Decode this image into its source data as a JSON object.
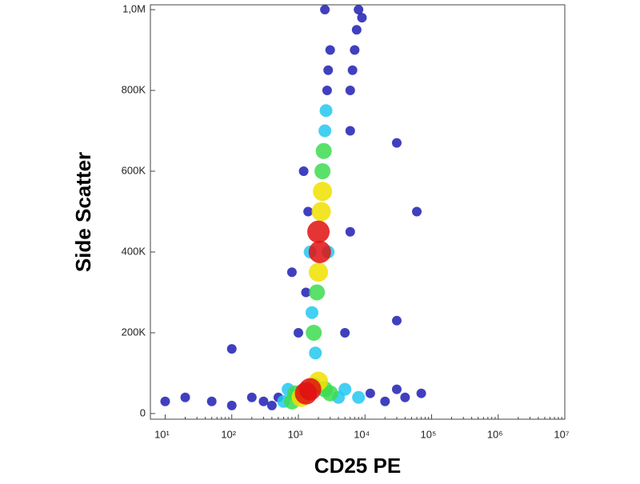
{
  "chart_data": {
    "type": "density",
    "x_label": "CD25 PE",
    "y_label": "Side Scatter",
    "x_log": true,
    "xlim": [
      6,
      10000000
    ],
    "xticks": [
      {
        "value": 10,
        "label": "10¹"
      },
      {
        "value": 100,
        "label": "10²"
      },
      {
        "value": 1000,
        "label": "10³"
      },
      {
        "value": 10000,
        "label": "10⁴"
      },
      {
        "value": 100000,
        "label": "10⁵"
      },
      {
        "value": 1000000,
        "label": "10⁶"
      },
      {
        "value": 10000000,
        "label": "10⁷"
      }
    ],
    "ylim": [
      -14000,
      1012000
    ],
    "yticks": [
      0,
      {
        "value": 200000,
        "label": "200K"
      },
      {
        "value": 400000,
        "label": "400K"
      },
      {
        "value": 600000,
        "label": "600K"
      },
      {
        "value": 800000,
        "label": "800K"
      },
      {
        "value": 1000000,
        "label": "1,0M"
      }
    ],
    "colors": [
      "#1e1eb4",
      "#22c8f0",
      "#3cdc50",
      "#f0e000",
      "#e01010"
    ],
    "x": [
      500,
      400,
      300,
      200,
      100,
      50,
      20,
      10,
      12000,
      20000,
      40000,
      70000,
      30000,
      1000,
      5000,
      1400,
      1300,
      1200,
      800,
      6000,
      2700,
      2800,
      3000,
      6000,
      6500,
      7000,
      7500,
      8000,
      6000,
      9000,
      2500,
      30000,
      60000,
      30000,
      100,
      600,
      700,
      4000,
      5000,
      1800,
      1600,
      2500,
      2600,
      1500,
      2800,
      8000,
      900,
      2500,
      800,
      3000,
      1700,
      1900,
      2300,
      2400,
      1100,
      2000,
      1700,
      2200,
      2300,
      1500,
      1300,
      2000,
      2100,
      2000
    ],
    "y": [
      40000,
      20000,
      30000,
      40000,
      20000,
      30000,
      40000,
      30000,
      50000,
      30000,
      40000,
      50000,
      60000,
      200000,
      200000,
      500000,
      300000,
      600000,
      350000,
      450000,
      800000,
      850000,
      900000,
      800000,
      850000,
      900000,
      950000,
      1000000,
      700000,
      980000,
      1000000,
      670000,
      500000,
      230000,
      160000,
      30000,
      60000,
      40000,
      60000,
      150000,
      250000,
      700000,
      750000,
      400000,
      400000,
      40000,
      50000,
      60000,
      30000,
      50000,
      70000,
      300000,
      600000,
      650000,
      40000,
      80000,
      200000,
      500000,
      550000,
      60000,
      50000,
      350000,
      400000,
      450000
    ],
    "density": [
      1,
      1,
      1,
      1,
      1,
      1,
      1,
      1,
      1,
      1,
      1,
      1,
      1,
      1,
      1,
      1,
      1,
      1,
      1,
      1,
      1,
      1,
      1,
      1,
      1,
      1,
      1,
      1,
      1,
      1,
      1,
      1,
      1,
      1,
      1,
      2,
      2,
      2,
      2,
      2,
      2,
      2,
      2,
      2,
      2,
      2,
      3,
      3,
      3,
      3,
      3,
      3,
      3,
      3,
      4,
      4,
      3,
      4,
      4,
      5,
      5,
      4,
      5,
      5
    ]
  }
}
